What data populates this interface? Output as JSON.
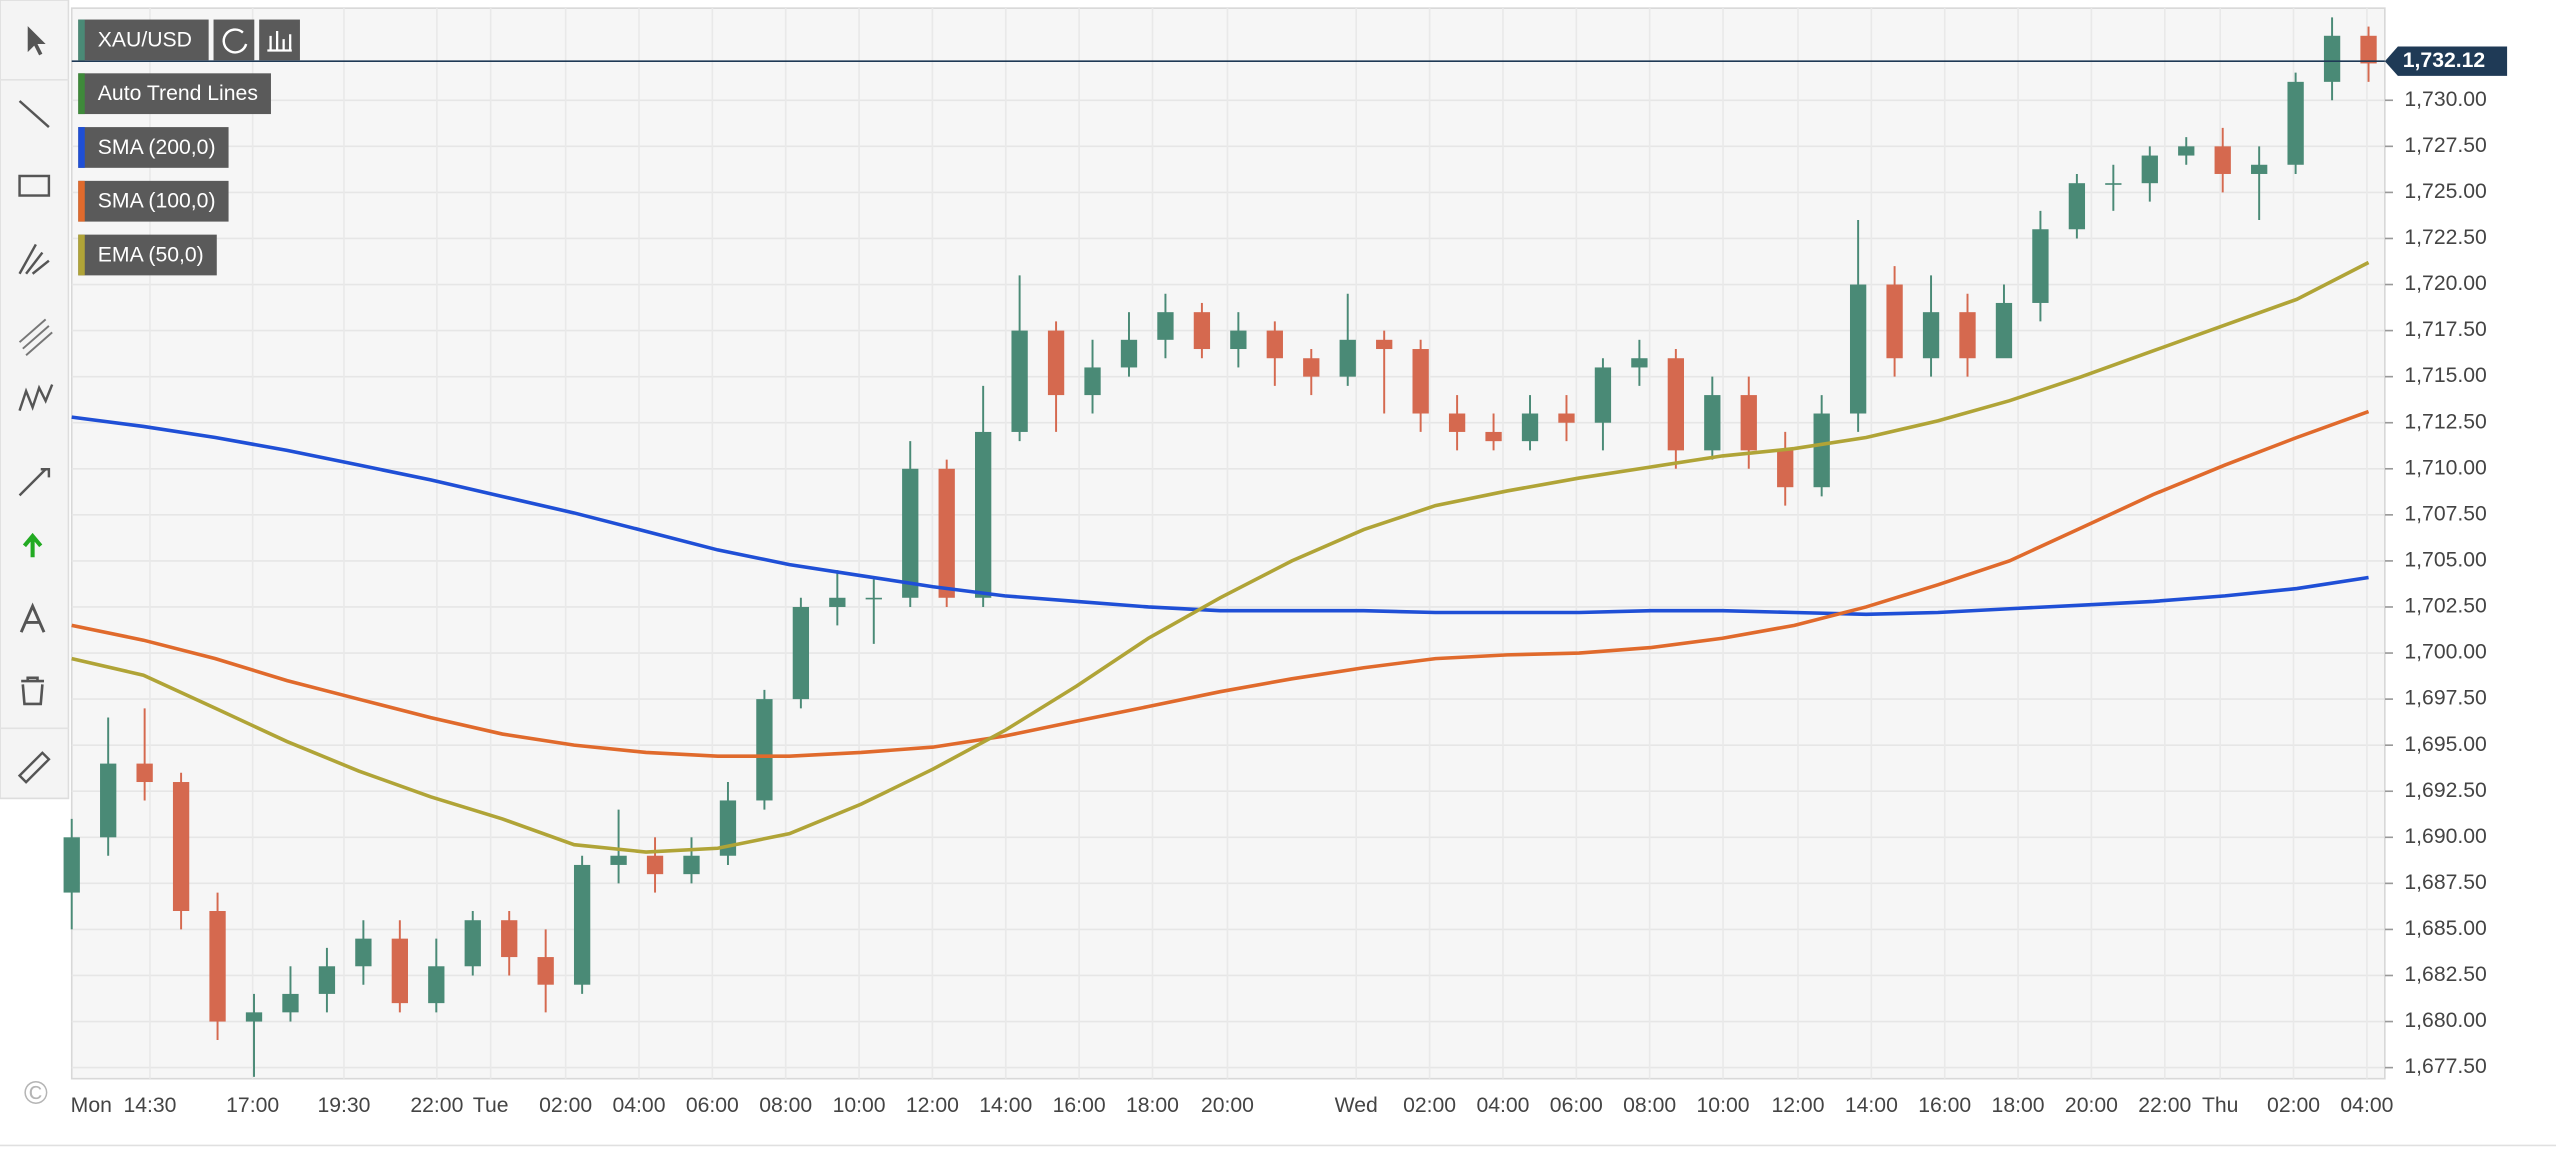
{
  "chart_data": {
    "type": "candlestick",
    "symbol": "XAU/USD",
    "annotations": [
      "Auto Trend Lines"
    ],
    "copyright": "©",
    "up_color": "#4a8a76",
    "down_color": "#d5694f",
    "grid": true,
    "ylim": [
      1676.9,
      1735
    ],
    "yticks": [
      {
        "value": 1677.5,
        "label": "1,677.50"
      },
      {
        "value": 1680,
        "label": "1,680.00"
      },
      {
        "value": 1682.5,
        "label": "1,682.50"
      },
      {
        "value": 1685,
        "label": "1,685.00"
      },
      {
        "value": 1687.5,
        "label": "1,687.50"
      },
      {
        "value": 1690,
        "label": "1,690.00"
      },
      {
        "value": 1692.5,
        "label": "1,692.50"
      },
      {
        "value": 1695,
        "label": "1,695.00"
      },
      {
        "value": 1697.5,
        "label": "1,697.50"
      },
      {
        "value": 1700,
        "label": "1,700.00"
      },
      {
        "value": 1702.5,
        "label": "1,702.50"
      },
      {
        "value": 1705,
        "label": "1,705.00"
      },
      {
        "value": 1707.5,
        "label": "1,707.50"
      },
      {
        "value": 1710,
        "label": "1,710.00"
      },
      {
        "value": 1712.5,
        "label": "1,712.50"
      },
      {
        "value": 1715,
        "label": "1,715.00"
      },
      {
        "value": 1717.5,
        "label": "1,717.50"
      },
      {
        "value": 1720,
        "label": "1,720.00"
      },
      {
        "value": 1722.5,
        "label": "1,722.50"
      },
      {
        "value": 1725,
        "label": "1,725.00"
      },
      {
        "value": 1727.5,
        "label": "1,727.50"
      },
      {
        "value": 1730,
        "label": "1,730.00"
      }
    ],
    "x_labels": [
      "Mon",
      "14:30",
      "17:00",
      "19:30",
      "22:00",
      "Tue",
      "02:00",
      "04:00",
      "06:00",
      "08:00",
      "10:00",
      "12:00",
      "14:00",
      "16:00",
      "18:00",
      "20:00",
      "Wed",
      "02:00",
      "04:00",
      "06:00",
      "08:00",
      "10:00",
      "12:00",
      "14:00",
      "16:00",
      "18:00",
      "20:00",
      "22:00",
      "Thu",
      "02:00",
      "04:00"
    ],
    "last_price": {
      "value": 1732.12,
      "label": "1,732.12",
      "color": "#1f3a56"
    },
    "ohlc": {
      "open": [
        1687,
        1690,
        1694,
        1693,
        1686,
        1680,
        1680.5,
        1681.5,
        1683,
        1684.5,
        1681,
        1683,
        1685.5,
        1683.5,
        1682,
        1688.5,
        1689,
        1688,
        1689,
        1692,
        1697.5,
        1702.5,
        1703,
        1703,
        1710,
        1703,
        1712,
        1717.5,
        1714,
        1715.5,
        1717,
        1718.5,
        1716.5,
        1717.5,
        1716,
        1715,
        1717,
        1716.5,
        1713,
        1712,
        1711.5,
        1713,
        1712.5,
        1715.5,
        1716,
        1711,
        1714,
        1711,
        1709,
        1713,
        1720,
        1716,
        1718.5,
        1716,
        1719,
        1723,
        1725.5,
        1725.5,
        1727,
        1727.5,
        1726,
        1726.5,
        1731,
        1733.5
      ],
      "high": [
        1691,
        1696.5,
        1697,
        1693.5,
        1687,
        1681.5,
        1683,
        1684,
        1685.5,
        1685.5,
        1684.5,
        1686,
        1686,
        1685,
        1689,
        1691.5,
        1690,
        1690,
        1693,
        1698,
        1703,
        1704.5,
        1704,
        1711.5,
        1710.5,
        1714.5,
        1720.5,
        1718,
        1717,
        1718.5,
        1719.5,
        1719,
        1718.5,
        1718,
        1716.5,
        1719.5,
        1717.5,
        1717,
        1714,
        1713,
        1714,
        1714,
        1716,
        1717,
        1716.5,
        1715,
        1715,
        1712,
        1714,
        1723.5,
        1721,
        1720.5,
        1719.5,
        1720,
        1724,
        1726,
        1726.5,
        1727.5,
        1728,
        1728.5,
        1727.5,
        1731.5,
        1734.5,
        1734
      ],
      "low": [
        1685,
        1689,
        1692,
        1685,
        1679,
        1677,
        1680,
        1680.5,
        1682,
        1680.5,
        1680.5,
        1682.5,
        1682.5,
        1680.5,
        1681.5,
        1687.5,
        1687,
        1687.5,
        1688.5,
        1691.5,
        1697,
        1701.5,
        1700.5,
        1702.5,
        1702.5,
        1702.5,
        1711.5,
        1712,
        1713,
        1715,
        1716,
        1716,
        1715.5,
        1714.5,
        1714,
        1714.5,
        1713,
        1712,
        1711,
        1711,
        1711,
        1711.5,
        1711,
        1714.5,
        1710,
        1710.5,
        1710,
        1708,
        1708.5,
        1712,
        1715,
        1715,
        1715,
        1716.5,
        1718,
        1722.5,
        1724,
        1724.5,
        1726.5,
        1725,
        1723.5,
        1726,
        1730,
        1731
      ],
      "close": [
        1690,
        1694,
        1693,
        1686,
        1680,
        1680.5,
        1681.5,
        1683,
        1684.5,
        1681,
        1683,
        1685.5,
        1683.5,
        1682,
        1688.5,
        1689,
        1688,
        1689,
        1692,
        1697.5,
        1702.5,
        1703,
        1703,
        1710,
        1703,
        1712,
        1717.5,
        1714,
        1715.5,
        1717,
        1718.5,
        1716.5,
        1717.5,
        1716,
        1715,
        1717,
        1716.5,
        1713,
        1712,
        1711.5,
        1713,
        1712.5,
        1715.5,
        1716,
        1711,
        1714,
        1711,
        1709,
        1713,
        1720,
        1716,
        1718.5,
        1716,
        1719,
        1723,
        1725.5,
        1725.5,
        1727,
        1727.5,
        1726,
        1726.5,
        1731,
        1733.5,
        1732
      ]
    },
    "series": [
      {
        "name": "SMA (200,0)",
        "color": "#1f4fd6",
        "values": [
          1712.8,
          1712.3,
          1711.7,
          1711.0,
          1710.2,
          1709.4,
          1708.5,
          1707.6,
          1706.6,
          1705.6,
          1704.8,
          1704.2,
          1703.6,
          1703.1,
          1702.8,
          1702.5,
          1702.3,
          1702.3,
          1702.3,
          1702.2,
          1702.2,
          1702.2,
          1702.3,
          1702.3,
          1702.2,
          1702.1,
          1702.2,
          1702.4,
          1702.6,
          1702.8,
          1703.1,
          1703.5,
          1704.1
        ]
      },
      {
        "name": "SMA (100,0)",
        "color": "#e06a2c",
        "values": [
          1701.5,
          1700.7,
          1699.7,
          1698.5,
          1697.5,
          1696.5,
          1695.6,
          1695.0,
          1694.6,
          1694.4,
          1694.4,
          1694.6,
          1694.9,
          1695.5,
          1696.3,
          1697.1,
          1697.9,
          1698.6,
          1699.2,
          1699.7,
          1699.9,
          1700.0,
          1700.3,
          1700.8,
          1701.5,
          1702.5,
          1703.7,
          1705.0,
          1706.8,
          1708.6,
          1710.2,
          1711.7,
          1713.1
        ]
      },
      {
        "name": "EMA (50,0)",
        "color": "#b0a437",
        "values": [
          1699.7,
          1698.8,
          1697.0,
          1695.2,
          1693.6,
          1692.2,
          1691.0,
          1689.6,
          1689.2,
          1689.4,
          1690.2,
          1691.8,
          1693.7,
          1695.8,
          1698.2,
          1700.8,
          1703.0,
          1705.0,
          1706.7,
          1708.0,
          1708.8,
          1709.5,
          1710.1,
          1710.7,
          1711.1,
          1711.7,
          1712.6,
          1713.7,
          1715.0,
          1716.4,
          1717.8,
          1719.2,
          1721.2
        ]
      }
    ],
    "annotation_colors": [
      "#3e8a3a"
    ]
  }
}
